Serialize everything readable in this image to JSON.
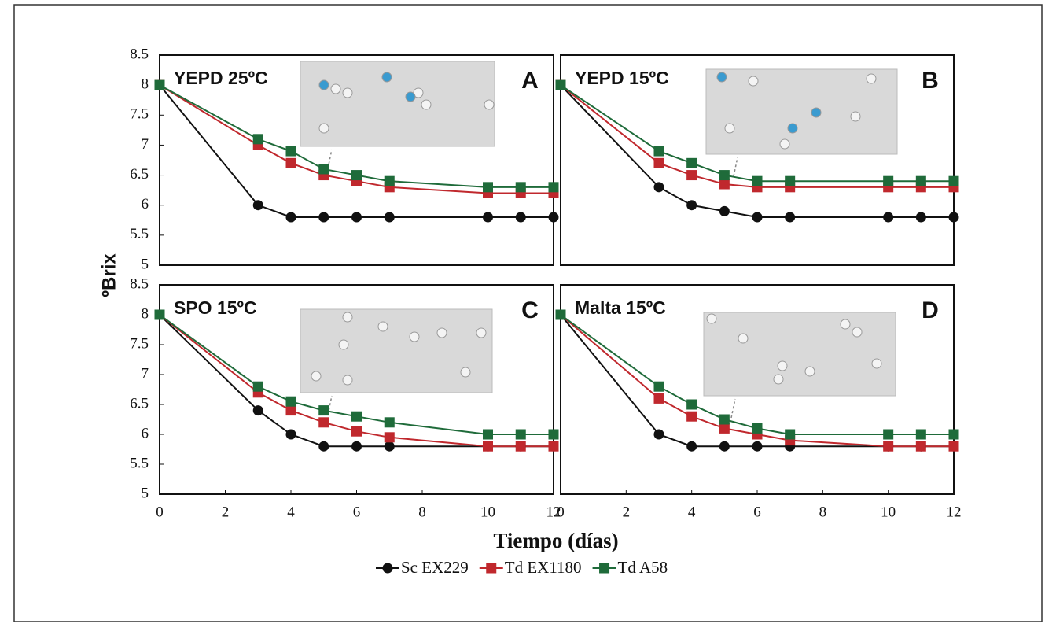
{
  "ylabel": "ºBrix",
  "xlabel": "Tiempo (días)",
  "chart_data": [
    {
      "type": "line",
      "title": "YEPD 25ºC",
      "label": "A",
      "x": [
        0,
        3,
        4,
        5,
        6,
        7,
        10,
        11,
        12
      ],
      "xlim": [
        0,
        12
      ],
      "ylim": [
        5,
        8.5
      ],
      "yticks": [
        5,
        5.5,
        6,
        6.5,
        7,
        7.5,
        8,
        8.5
      ],
      "series": [
        {
          "name": "Sc EX229",
          "color": "#111111",
          "marker": "circle",
          "values": [
            8,
            6.0,
            5.8,
            5.8,
            5.8,
            5.8,
            5.8,
            5.8,
            5.8
          ]
        },
        {
          "name": "Td EX1180",
          "color": "#c0282d",
          "marker": "square",
          "values": [
            8,
            7.0,
            6.7,
            6.5,
            6.4,
            6.3,
            6.2,
            6.2,
            6.2
          ]
        },
        {
          "name": "Td A58",
          "color": "#1f6b3a",
          "marker": "square",
          "values": [
            8,
            7.1,
            6.9,
            6.6,
            6.5,
            6.4,
            6.3,
            6.3,
            6.3
          ]
        }
      ]
    },
    {
      "type": "line",
      "title": "YEPD 15ºC",
      "label": "B",
      "x": [
        0,
        3,
        4,
        5,
        6,
        7,
        10,
        11,
        12
      ],
      "xlim": [
        0,
        12
      ],
      "ylim": [
        5,
        8.5
      ],
      "series": [
        {
          "name": "Sc EX229",
          "color": "#111111",
          "marker": "circle",
          "values": [
            8,
            6.3,
            6.0,
            5.9,
            5.8,
            5.8,
            5.8,
            5.8,
            5.8
          ]
        },
        {
          "name": "Td EX1180",
          "color": "#c0282d",
          "marker": "square",
          "values": [
            8,
            6.7,
            6.5,
            6.35,
            6.3,
            6.3,
            6.3,
            6.3,
            6.3
          ]
        },
        {
          "name": "Td A58",
          "color": "#1f6b3a",
          "marker": "square",
          "values": [
            8,
            6.9,
            6.7,
            6.5,
            6.4,
            6.4,
            6.4,
            6.4,
            6.4
          ]
        }
      ]
    },
    {
      "type": "line",
      "title": "SPO 15ºC",
      "label": "C",
      "x": [
        0,
        3,
        4,
        5,
        6,
        7,
        10,
        11,
        12
      ],
      "xlim": [
        0,
        12
      ],
      "ylim": [
        5,
        8.5
      ],
      "yticks": [
        5,
        5.5,
        6,
        6.5,
        7,
        7.5,
        8,
        8.5
      ],
      "xticks": [
        0,
        2,
        4,
        6,
        8,
        10,
        12
      ],
      "series": [
        {
          "name": "Sc EX229",
          "color": "#111111",
          "marker": "circle",
          "values": [
            8,
            6.4,
            6.0,
            5.8,
            5.8,
            5.8,
            5.8,
            5.8,
            5.8
          ]
        },
        {
          "name": "Td EX1180",
          "color": "#c0282d",
          "marker": "square",
          "values": [
            8,
            6.7,
            6.4,
            6.2,
            6.05,
            5.95,
            5.8,
            5.8,
            5.8
          ]
        },
        {
          "name": "Td A58",
          "color": "#1f6b3a",
          "marker": "square",
          "values": [
            8,
            6.8,
            6.55,
            6.4,
            6.3,
            6.2,
            6.0,
            6.0,
            6.0
          ]
        }
      ]
    },
    {
      "type": "line",
      "title": "Malta 15ºC",
      "label": "D",
      "x": [
        0,
        3,
        4,
        5,
        6,
        7,
        10,
        11,
        12
      ],
      "xlim": [
        0,
        12
      ],
      "ylim": [
        5,
        8.5
      ],
      "xticks": [
        0,
        2,
        4,
        6,
        8,
        10,
        12
      ],
      "series": [
        {
          "name": "Sc EX229",
          "color": "#111111",
          "marker": "circle",
          "values": [
            8,
            6.0,
            5.8,
            5.8,
            5.8,
            5.8,
            5.8,
            5.8,
            5.8
          ]
        },
        {
          "name": "Td EX1180",
          "color": "#c0282d",
          "marker": "square",
          "values": [
            8,
            6.6,
            6.3,
            6.1,
            6.0,
            5.9,
            5.8,
            5.8,
            5.8
          ]
        },
        {
          "name": "Td A58",
          "color": "#1f6b3a",
          "marker": "square",
          "values": [
            8,
            6.8,
            6.5,
            6.25,
            6.1,
            6.0,
            6.0,
            6.0,
            6.0
          ]
        }
      ]
    }
  ]
}
